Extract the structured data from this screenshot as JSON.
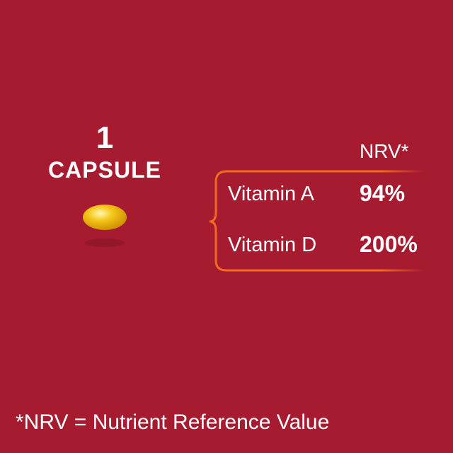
{
  "capsule": {
    "count": "1",
    "unit": "CAPSULE"
  },
  "table": {
    "header": "NRV*",
    "rows": [
      {
        "label": "Vitamin A",
        "value": "94%"
      },
      {
        "label": "Vitamin D",
        "value": "200%"
      }
    ]
  },
  "footnote": "*NRV = Nutrient Reference Value",
  "colors": {
    "background": "#a61b2f",
    "bracket": "#f26a21",
    "capsule": "#f2b705"
  }
}
